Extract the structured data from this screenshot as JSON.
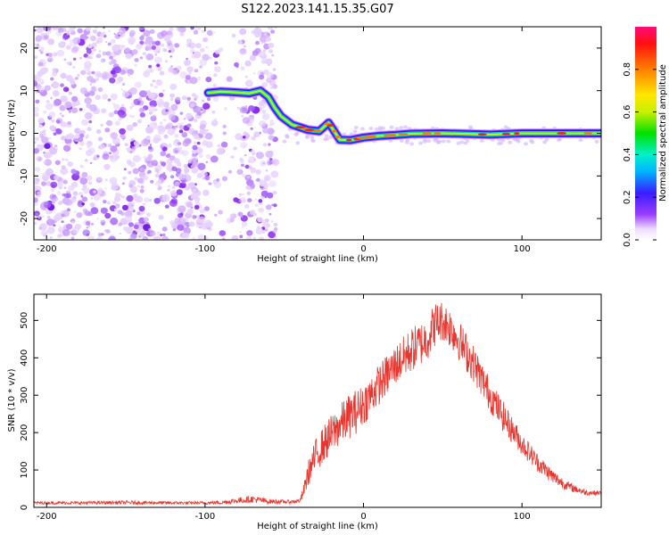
{
  "title": "S122.2023.141.15.35.G07",
  "chart_data": [
    {
      "type": "heatmap",
      "xlabel": "Height of straight line (km)",
      "ylabel": "Frequency (Hz)",
      "xlim": [
        -208,
        150
      ],
      "ylim": [
        -25,
        25
      ],
      "xticks": [
        -200,
        -100,
        0,
        100
      ],
      "yticks": [
        -20,
        -10,
        0,
        10,
        20
      ],
      "colorbar": {
        "label": "Normalized spectral amplitude",
        "range": [
          0,
          1
        ],
        "ticks": [
          0.0,
          0.2,
          0.4,
          0.6,
          0.8
        ],
        "tick_labels": [
          "0.0",
          "0.2",
          "0.4",
          "0.6",
          "0.8"
        ]
      },
      "signal_track": [
        {
          "x": -98,
          "y": 9.5
        },
        {
          "x": -90,
          "y": 9.8
        },
        {
          "x": -80,
          "y": 9.6
        },
        {
          "x": -72,
          "y": 9.4
        },
        {
          "x": -65,
          "y": 10.0
        },
        {
          "x": -60,
          "y": 8.5
        },
        {
          "x": -56,
          "y": 6.0
        },
        {
          "x": -52,
          "y": 4.0
        },
        {
          "x": -45,
          "y": 2.0
        },
        {
          "x": -35,
          "y": 0.8
        },
        {
          "x": -28,
          "y": 0.5
        },
        {
          "x": -22,
          "y": 2.5
        },
        {
          "x": -15,
          "y": -1.5
        },
        {
          "x": -8,
          "y": -1.6
        },
        {
          "x": 0,
          "y": -1.0
        },
        {
          "x": 10,
          "y": -0.6
        },
        {
          "x": 20,
          "y": -0.4
        },
        {
          "x": 30,
          "y": -0.1
        },
        {
          "x": 50,
          "y": 0.0
        },
        {
          "x": 80,
          "y": -0.3
        },
        {
          "x": 100,
          "y": 0.0
        },
        {
          "x": 150,
          "y": 0.0
        }
      ],
      "noise_region_x": [
        -208,
        -55
      ],
      "noise_gap_x": [
        -93,
        -78
      ]
    },
    {
      "type": "line",
      "xlabel": "Height of straight line (km)",
      "ylabel": "SNR (10 * v/v)",
      "xlim": [
        -208,
        150
      ],
      "ylim": [
        0,
        570
      ],
      "xticks": [
        -200,
        -100,
        0,
        100
      ],
      "yticks": [
        0,
        100,
        200,
        300,
        400,
        500
      ],
      "color": "#e8352e",
      "envelope": {
        "x": [
          -208,
          -180,
          -150,
          -120,
          -100,
          -90,
          -80,
          -70,
          -60,
          -50,
          -45,
          -40,
          -38,
          -35,
          -30,
          -25,
          -20,
          -15,
          -10,
          -5,
          0,
          10,
          20,
          30,
          40,
          45,
          50,
          55,
          60,
          70,
          80,
          90,
          100,
          110,
          120,
          130,
          140,
          150
        ],
        "mean": [
          12,
          12,
          13,
          12,
          12,
          13,
          18,
          22,
          16,
          15,
          15,
          18,
          40,
          90,
          140,
          170,
          195,
          220,
          240,
          255,
          275,
          330,
          380,
          420,
          450,
          490,
          500,
          480,
          450,
          380,
          300,
          230,
          170,
          120,
          80,
          55,
          40,
          38
        ],
        "spread": [
          4,
          4,
          5,
          4,
          4,
          5,
          8,
          10,
          7,
          5,
          5,
          6,
          15,
          35,
          45,
          50,
          55,
          55,
          60,
          60,
          55,
          55,
          55,
          60,
          60,
          60,
          55,
          55,
          55,
          50,
          45,
          40,
          30,
          25,
          20,
          12,
          8,
          6
        ]
      }
    }
  ]
}
